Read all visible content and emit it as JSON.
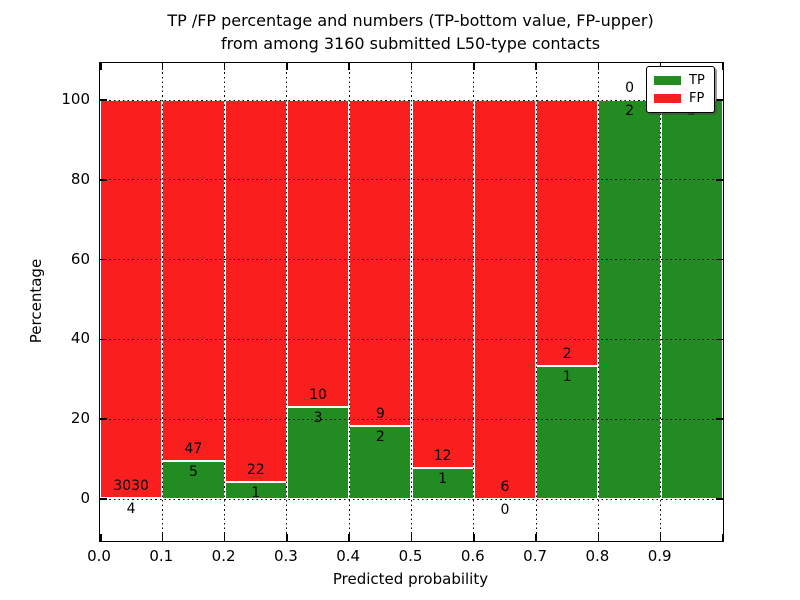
{
  "chart_data": {
    "type": "bar",
    "stacked": true,
    "normalized_to_percent": true,
    "title_line1": "TP /FP percentage and numbers (TP-bottom value, FP-upper)",
    "title_line2": "from among 3160 submitted L50-type contacts",
    "total_submitted_contacts": 3160,
    "xlabel": "Predicted probability",
    "ylabel": "Percentage",
    "xlim": [
      0.0,
      1.0
    ],
    "ylim": [
      -10,
      110
    ],
    "grid": true,
    "x_ticks": [
      "0.0",
      "0.1",
      "0.2",
      "0.3",
      "0.4",
      "0.5",
      "0.6",
      "0.7",
      "0.8",
      "0.9"
    ],
    "y_ticks": [
      0,
      20,
      40,
      60,
      80,
      100
    ],
    "bins": [
      {
        "range": "0.0-0.1",
        "tp": 4,
        "fp": 3030,
        "tp_percent": 0.13,
        "fp_percent": 99.87
      },
      {
        "range": "0.1-0.2",
        "tp": 5,
        "fp": 47,
        "tp_percent": 9.62,
        "fp_percent": 90.38
      },
      {
        "range": "0.2-0.3",
        "tp": 1,
        "fp": 22,
        "tp_percent": 4.35,
        "fp_percent": 95.65
      },
      {
        "range": "0.3-0.4",
        "tp": 3,
        "fp": 10,
        "tp_percent": 23.08,
        "fp_percent": 76.92
      },
      {
        "range": "0.4-0.5",
        "tp": 2,
        "fp": 9,
        "tp_percent": 18.18,
        "fp_percent": 81.82
      },
      {
        "range": "0.5-0.6",
        "tp": 1,
        "fp": 12,
        "tp_percent": 7.69,
        "fp_percent": 92.31
      },
      {
        "range": "0.6-0.7",
        "tp": 0,
        "fp": 6,
        "tp_percent": 0.0,
        "fp_percent": 100.0
      },
      {
        "range": "0.7-0.8",
        "tp": 1,
        "fp": 2,
        "tp_percent": 33.33,
        "fp_percent": 66.67
      },
      {
        "range": "0.8-0.9",
        "tp": 2,
        "fp": 0,
        "tp_percent": 100.0,
        "fp_percent": 0.0
      },
      {
        "range": "0.9-1.0",
        "tp": 3,
        "fp": 0,
        "tp_percent": 100.0,
        "fp_percent": 0.0
      }
    ],
    "series": [
      {
        "name": "TP",
        "color": "#228b22",
        "counts": [
          4,
          5,
          1,
          3,
          2,
          1,
          0,
          1,
          2,
          3
        ]
      },
      {
        "name": "FP",
        "color": "#fa1f1f",
        "counts": [
          3030,
          47,
          22,
          10,
          9,
          12,
          6,
          2,
          0,
          0
        ]
      }
    ],
    "legend": {
      "position": "upper right",
      "entries": [
        {
          "label": "TP",
          "color": "#228b22"
        },
        {
          "label": "FP",
          "color": "#fa1f1f"
        }
      ]
    }
  }
}
